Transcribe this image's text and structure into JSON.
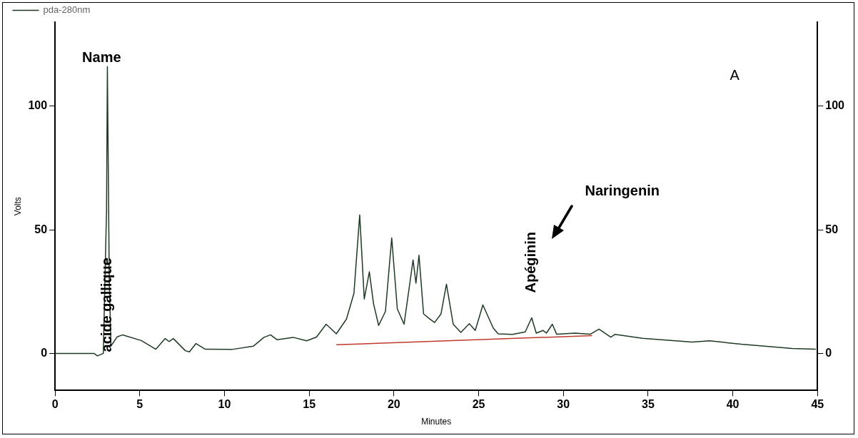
{
  "chart_data": {
    "type": "line",
    "xlabel": "Minutes",
    "ylabel": "Volts",
    "xlim": [
      0,
      45
    ],
    "xticks": [
      0,
      5,
      10,
      15,
      20,
      25,
      30,
      35,
      40,
      45
    ],
    "ylim": [
      -15,
      134
    ],
    "yticks": [
      0,
      50,
      100
    ],
    "y2lim": [
      -15,
      134
    ],
    "y2ticks": [
      0,
      50,
      100
    ],
    "legend": "top left",
    "grid": false,
    "marker": "none",
    "line_style": "solid",
    "series": [
      {
        "name": "pda-280nm",
        "color": "#1f3a24",
        "x": [
          0,
          2.3,
          2.5,
          2.85,
          2.98,
          3.04,
          3.09,
          3.2,
          3.3,
          3.67,
          3.99,
          5.09,
          5.95,
          6.5,
          6.73,
          6.98,
          7.69,
          7.93,
          8.32,
          8.87,
          10.44,
          11.7,
          12.33,
          12.72,
          13.11,
          14.05,
          14.85,
          15.43,
          16.0,
          16.24,
          16.6,
          17.2,
          17.64,
          17.98,
          18.25,
          18.55,
          18.8,
          19.1,
          19.5,
          19.87,
          20.2,
          20.6,
          21.13,
          21.3,
          21.48,
          21.75,
          22.1,
          22.4,
          22.78,
          23.1,
          23.5,
          23.95,
          24.45,
          24.8,
          25.25,
          25.86,
          26.15,
          27.0,
          27.75,
          28.13,
          28.4,
          28.8,
          29.0,
          29.35,
          29.6,
          30.7,
          31.6,
          32.1,
          32.8,
          33.05,
          34.67,
          37.6,
          38.63,
          40.5,
          43.5,
          44.9
        ],
        "values": [
          0,
          0,
          -1,
          0,
          40,
          58,
          116,
          30,
          3,
          6.7,
          7.5,
          5.2,
          1.7,
          6,
          4.8,
          6,
          1.1,
          0.6,
          4,
          1.7,
          1.6,
          2.9,
          6.5,
          7.5,
          5.5,
          6.5,
          5.1,
          6.6,
          11.8,
          10.3,
          7.9,
          13.9,
          24.3,
          56,
          22,
          33,
          20,
          11.3,
          17,
          46.7,
          18,
          11.8,
          37.8,
          28.4,
          39.7,
          16,
          14,
          12.5,
          16,
          28,
          11.8,
          8.5,
          12,
          9.3,
          19.6,
          10.3,
          7.9,
          7.7,
          8.7,
          14.4,
          8.2,
          9.3,
          8.2,
          11.8,
          7.8,
          8.2,
          7.8,
          9.8,
          6.6,
          7.7,
          6.1,
          4.6,
          5.1,
          3.7,
          2,
          1.7
        ]
      },
      {
        "color": "#c0392b",
        "x": [
          16.6,
          31.7
        ],
        "values": [
          3.5,
          7.2
        ]
      }
    ],
    "annotations": [
      "Name",
      "A",
      "Naringenin",
      {
        "text": "acide gallique",
        "x": 3.09,
        "y": 0
      },
      {
        "text": "Apéginin",
        "x": 28.13,
        "y": 14.4
      }
    ]
  }
}
